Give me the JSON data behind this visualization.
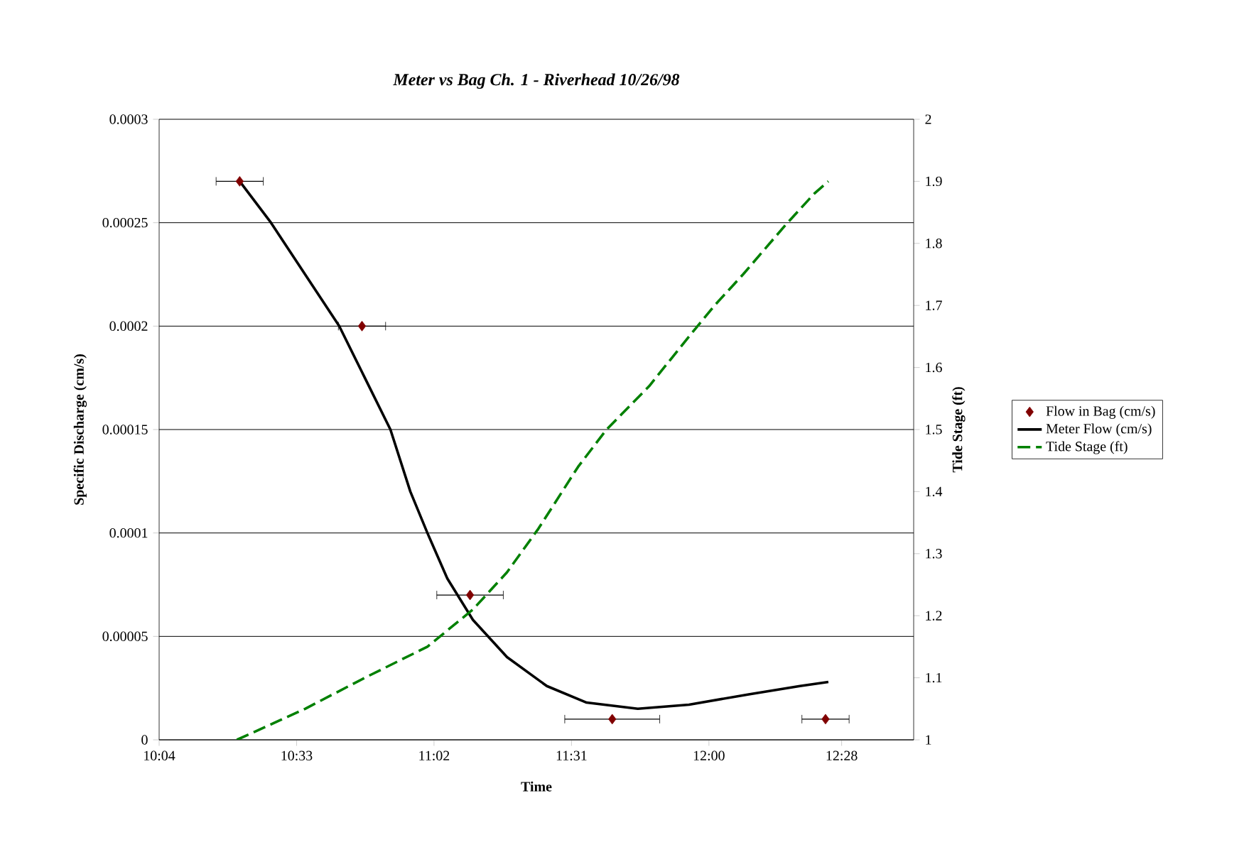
{
  "chart_data": {
    "type": "line",
    "title": "Meter vs Bag Ch. 1 - Riverhead 10/26/98",
    "xlabel": "Time",
    "ylabel": "Specific Discharge (cm/s)",
    "y2label": "Tide Stage (ft)",
    "xlim": [
      10.0667,
      12.72
    ],
    "xticks": [
      {
        "value": 10.0667,
        "label": "10:04"
      },
      {
        "value": 10.55,
        "label": "10:33"
      },
      {
        "value": 11.0333,
        "label": "11:02"
      },
      {
        "value": 11.5167,
        "label": "11:31"
      },
      {
        "value": 12.0,
        "label": "12:00"
      },
      {
        "value": 12.4667,
        "label": "12:28"
      }
    ],
    "ylim": [
      0,
      0.0003
    ],
    "yticks": [
      {
        "value": 0,
        "label": "0"
      },
      {
        "value": 5e-05,
        "label": "0.00005"
      },
      {
        "value": 0.0001,
        "label": "0.0001"
      },
      {
        "value": 0.00015,
        "label": "0.00015"
      },
      {
        "value": 0.0002,
        "label": "0.0002"
      },
      {
        "value": 0.00025,
        "label": "0.00025"
      },
      {
        "value": 0.0003,
        "label": "0.0003"
      }
    ],
    "y2lim": [
      1,
      2
    ],
    "y2ticks": [
      1,
      1.1,
      1.2,
      1.3,
      1.4,
      1.5,
      1.6,
      1.7,
      1.8,
      1.9,
      2
    ],
    "grid": "y",
    "legend": "right",
    "series": [
      {
        "name": "Flow in Bag (cm/s)",
        "type": "scatter",
        "color": "#800000",
        "marker": "diamond",
        "x": [
          10.35,
          10.78,
          11.16,
          11.66,
          12.41
        ],
        "values": [
          0.00027,
          0.0002,
          7e-05,
          1e-05,
          1e-05
        ],
        "xerrors": [
          0.083,
          0.083,
          0.117,
          0.167,
          0.083
        ]
      },
      {
        "name": "Meter Flow (cm/s)",
        "color": "#000000",
        "line_style": "solid",
        "x": [
          10.35,
          10.46,
          10.58,
          10.7,
          10.79,
          10.88,
          10.95,
          11.01,
          11.08,
          11.17,
          11.29,
          11.43,
          11.57,
          11.75,
          11.93,
          12.14,
          12.32,
          12.42
        ],
        "values": [
          0.00027,
          0.00025,
          0.000225,
          0.0002,
          0.000175,
          0.00015,
          0.00012,
          0.0001,
          7.8e-05,
          5.8e-05,
          4e-05,
          2.6e-05,
          1.8e-05,
          1.5e-05,
          1.7e-05,
          2.2e-05,
          2.6e-05,
          2.8e-05
        ]
      },
      {
        "name": "Tide Stage (ft)",
        "axis": "y2",
        "color": "#008000",
        "line_style": "dashed",
        "x": [
          10.34,
          10.58,
          10.79,
          11.01,
          11.17,
          11.29,
          11.4,
          11.54,
          11.64,
          11.79,
          11.93,
          12.02,
          12.12,
          12.27,
          12.37,
          12.42
        ],
        "values": [
          1.0,
          1.05,
          1.1,
          1.15,
          1.21,
          1.27,
          1.34,
          1.44,
          1.5,
          1.57,
          1.65,
          1.7,
          1.75,
          1.83,
          1.88,
          1.9
        ]
      }
    ]
  }
}
